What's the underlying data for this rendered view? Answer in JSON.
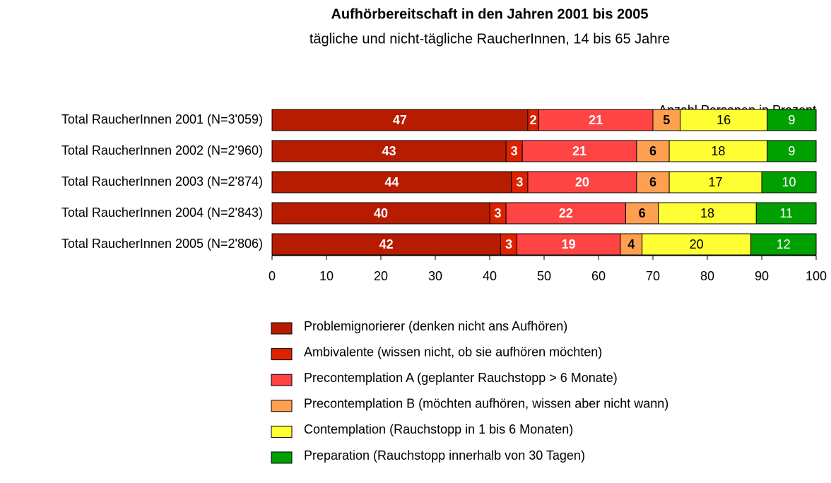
{
  "chart_data": {
    "type": "stacked-bar-horizontal",
    "title": "Aufhörbereitschaft in den Jahren 2001 bis 2005",
    "subtitle": "tägliche und nicht-tägliche RaucherInnen, 14 bis 65 Jahre",
    "xlabel": "Anzahl Personen in Prozent",
    "categories": [
      "Total RaucherInnen 2001 (N=3'059)",
      "Total RaucherInnen 2002 (N=2'960)",
      "Total RaucherInnen 2003 (N=2'874)",
      "Total RaucherInnen 2004 (N=2'843)",
      "Total RaucherInnen 2005 (N=2'806)"
    ],
    "series": [
      {
        "name": "Problemignorierer (denken nicht ans Aufhören)",
        "color": "#b81c00",
        "label_color": "#ffffff",
        "label_weight": "bold",
        "values": [
          47,
          43,
          44,
          40,
          42
        ]
      },
      {
        "name": "Ambivalente (wissen nicht, ob sie aufhören möchten)",
        "color": "#dd2200",
        "label_color": "#ffffff",
        "label_weight": "bold",
        "values": [
          2,
          3,
          3,
          3,
          3
        ]
      },
      {
        "name": "Precontemplation A (geplanter Rauchstopp > 6 Monate)",
        "color": "#ff4444",
        "label_color": "#ffffff",
        "label_weight": "bold",
        "values": [
          21,
          21,
          20,
          22,
          19
        ]
      },
      {
        "name": "Precontemplation B (möchten aufhören, wissen aber nicht wann)",
        "color": "#ffa050",
        "label_color": "#000000",
        "label_weight": "bold",
        "values": [
          5,
          6,
          6,
          6,
          4
        ]
      },
      {
        "name": "Contemplation (Rauchstopp in 1 bis 6 Monaten)",
        "color": "#ffff33",
        "label_color": "#000000",
        "label_weight": "normal",
        "values": [
          16,
          18,
          17,
          18,
          20
        ]
      },
      {
        "name": "Preparation (Rauchstopp innerhalb von 30 Tagen)",
        "color": "#00a000",
        "label_color": "#ffffff",
        "label_weight": "normal",
        "values": [
          9,
          9,
          10,
          11,
          12
        ]
      }
    ],
    "xlim": [
      0,
      100
    ],
    "xticks": [
      0,
      10,
      20,
      30,
      40,
      50,
      60,
      70,
      80,
      90,
      100
    ]
  }
}
